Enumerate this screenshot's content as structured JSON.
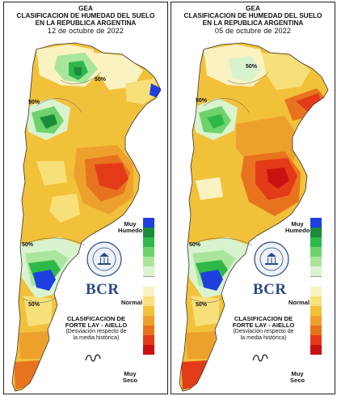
{
  "panels": [
    {
      "org": "GEA",
      "title_line1": "CLASIFICACION DE HUMEDAD DEL SUELO",
      "title_line2": "EN LA REPUBLICA ARGENTINA",
      "date": "12 de octubre de 2022",
      "iso_labels": [
        "50%",
        "50%",
        "50%",
        "50%"
      ]
    },
    {
      "org": "GEA",
      "title_line1": "CLASIFICACION DE HUMEDAD DEL SUELO",
      "title_line2": "EN LA REPUBLICA ARGENTINA",
      "date": "05 de octubre de 2022",
      "iso_labels": [
        "50%",
        "50%",
        "50%",
        "50%"
      ]
    }
  ],
  "legend": {
    "wet_label": "Muy Humedo",
    "normal_label": "Normal",
    "dry_label": "Muy Seco",
    "colors": [
      "#1e3fe0",
      "#1a8c3a",
      "#2eb84a",
      "#6fd36d",
      "#a9e69c",
      "#d9f3cf",
      "#ffffff",
      "#fbf2c2",
      "#f7e07a",
      "#f2c13a",
      "#eea02c",
      "#e8731e",
      "#e33a18",
      "#c81212"
    ]
  },
  "logo": {
    "text": "BCR",
    "seal_text": "BOLSA DE COMERCIO DE ROSARIO"
  },
  "method": {
    "title_line1": "CLASIFICACION DE",
    "title_line2": "FORTE LAY - AIELLO",
    "sub_line1": "(Desviación respecto de",
    "sub_line2": "la media histórica)"
  }
}
